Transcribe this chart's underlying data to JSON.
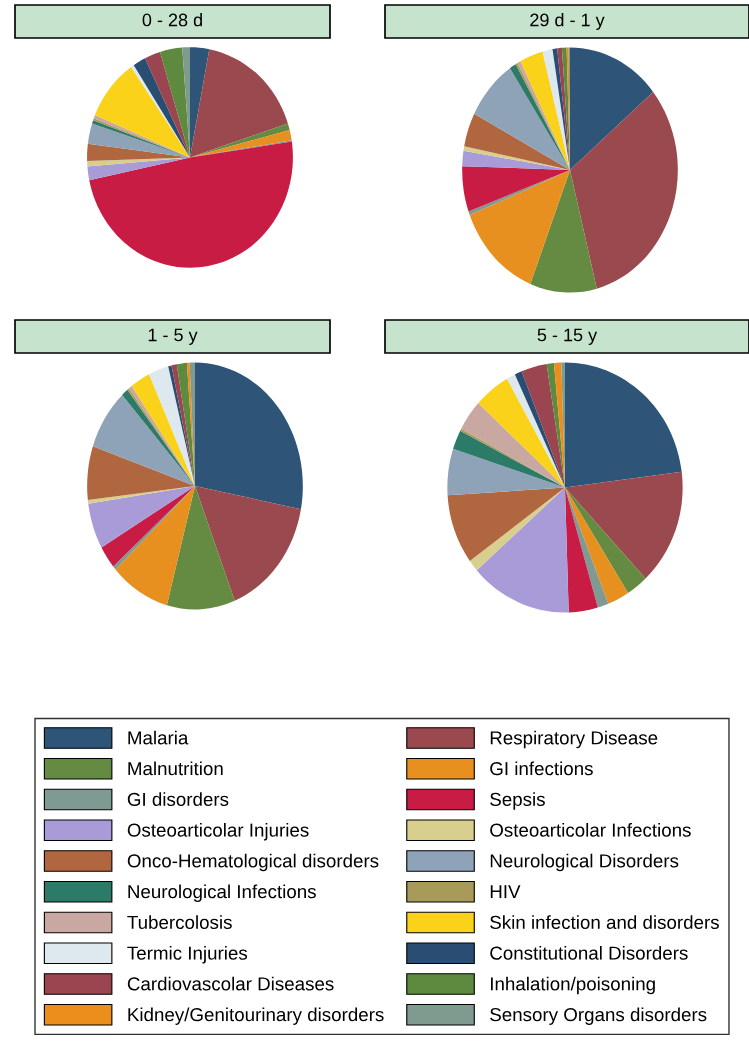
{
  "chart_data": [
    {
      "type": "pie",
      "title": "0 - 28 d",
      "legend": "bottom",
      "categories": [
        "Malaria",
        "Respiratory Disease",
        "Malnutrition",
        "GI infections",
        "GI disorders",
        "Sepsis",
        "Osteoarticolar Injuries",
        "Osteoarticolar Infections",
        "Onco-Hematological disorders",
        "Neurological Disorders",
        "Neurological Infections",
        "HIV",
        "Tubercolosis",
        "Skin infection and disorders",
        "Termic Injuries",
        "Constitutional Disorders",
        "Cardiovascolar Diseases",
        "Inhalation/poisoning",
        "Kidney/Genitourinary disorders",
        "Sensory Organs disorders"
      ],
      "values": [
        3,
        17,
        1,
        1.5,
        0.2,
        49,
        2,
        0.8,
        2.5,
        3,
        0.5,
        0.3,
        0.5,
        9,
        0.5,
        2,
        2.5,
        3.5,
        0,
        1.2
      ],
      "colors": [
        "#2e5478",
        "#9a4a4f",
        "#658a42",
        "#e8901f",
        "#7f9a92",
        "#c81c44",
        "#a99ad8",
        "#d8cf8e",
        "#b0663f",
        "#8fa3b8",
        "#2c7a68",
        "#a89a58",
        "#c8a8a0",
        "#fbd21a",
        "#dde9ee",
        "#2a4e73",
        "#9a4550",
        "#5e8a3f",
        "#ec8e1c",
        "#7f9a8e"
      ]
    },
    {
      "type": "pie",
      "title": "29 d - 1 y",
      "categories": [
        null,
        null,
        null,
        null,
        null,
        null,
        null,
        null,
        null,
        null,
        null,
        null,
        null,
        null,
        null,
        null,
        null,
        null,
        null,
        null
      ],
      "values": [
        14,
        32,
        10,
        13,
        0.5,
        6,
        2,
        0.6,
        4.5,
        8,
        1,
        0.3,
        0.5,
        3.5,
        1.5,
        0.7,
        0.7,
        0.7,
        0.3,
        0.2
      ],
      "colors": [
        "#2e5478",
        "#9a4a4f",
        "#658a42",
        "#e8901f",
        "#7f9a92",
        "#c81c44",
        "#a99ad8",
        "#d8cf8e",
        "#b0663f",
        "#8fa3b8",
        "#2c7a68",
        "#a89a58",
        "#c8a8a0",
        "#fbd21a",
        "#dde9ee",
        "#2a4e73",
        "#9a4550",
        "#5e8a3f",
        "#ec8e1c",
        "#7f9a8e"
      ]
    },
    {
      "type": "pie",
      "title": "1 - 5 y",
      "categories": [
        null,
        null,
        null,
        null,
        null,
        null,
        null,
        null,
        null,
        null,
        null,
        null,
        null,
        null,
        null,
        null,
        null,
        null,
        null,
        null
      ],
      "values": [
        28,
        16,
        10.2,
        9,
        0.5,
        3,
        6,
        0.5,
        7,
        8,
        1,
        0.3,
        0.5,
        3,
        3,
        0.5,
        0.8,
        1.5,
        0.4,
        0.8
      ],
      "colors": [
        "#2e5478",
        "#9a4a4f",
        "#658a42",
        "#e8901f",
        "#7f9a92",
        "#c81c44",
        "#a99ad8",
        "#d8cf8e",
        "#b0663f",
        "#8fa3b8",
        "#2c7a68",
        "#a89a58",
        "#c8a8a0",
        "#fbd21a",
        "#dde9ee",
        "#2a4e73",
        "#9a4550",
        "#5e8a3f",
        "#ec8e1c",
        "#7f9a8e"
      ]
    },
    {
      "type": "pie",
      "title": "5 - 15 y",
      "categories": [
        null,
        null,
        null,
        null,
        null,
        null,
        null,
        null,
        null,
        null,
        null,
        null,
        null,
        null,
        null,
        null,
        null,
        null,
        null,
        null
      ],
      "values": [
        23,
        15,
        3,
        3,
        1.5,
        4,
        14,
        1.5,
        9,
        6,
        2.5,
        0.3,
        4,
        5,
        1.2,
        1,
        3.5,
        1,
        1,
        0.5
      ],
      "colors": [
        "#2e5478",
        "#9a4a4f",
        "#658a42",
        "#e8901f",
        "#7f9a92",
        "#c81c44",
        "#a99ad8",
        "#d8cf8e",
        "#b0663f",
        "#8fa3b8",
        "#2c7a68",
        "#a89a58",
        "#c8a8a0",
        "#fbd21a",
        "#dde9ee",
        "#2a4e73",
        "#9a4550",
        "#5e8a3f",
        "#ec8e1c",
        "#7f9a8e"
      ]
    }
  ]
}
